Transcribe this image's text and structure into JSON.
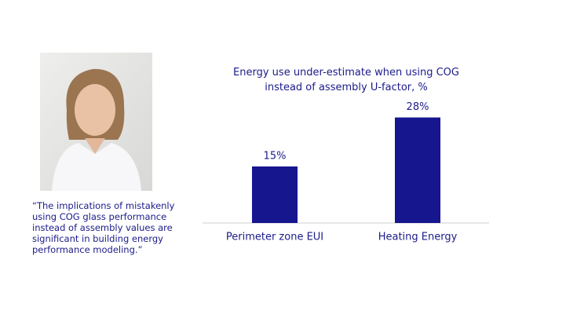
{
  "quote": "“The implications of mistakenly using COG glass performance instead of assembly values are significant in building energy performance modeling.”",
  "chart_data": {
    "type": "bar",
    "title": "Energy use under-estimate when using COG instead of assembly U-factor, %",
    "categories": [
      "Perimeter zone EUI",
      "Heating Energy"
    ],
    "values": [
      15,
      28
    ],
    "value_labels": [
      "15%",
      "28%"
    ],
    "color": "#16168f"
  }
}
